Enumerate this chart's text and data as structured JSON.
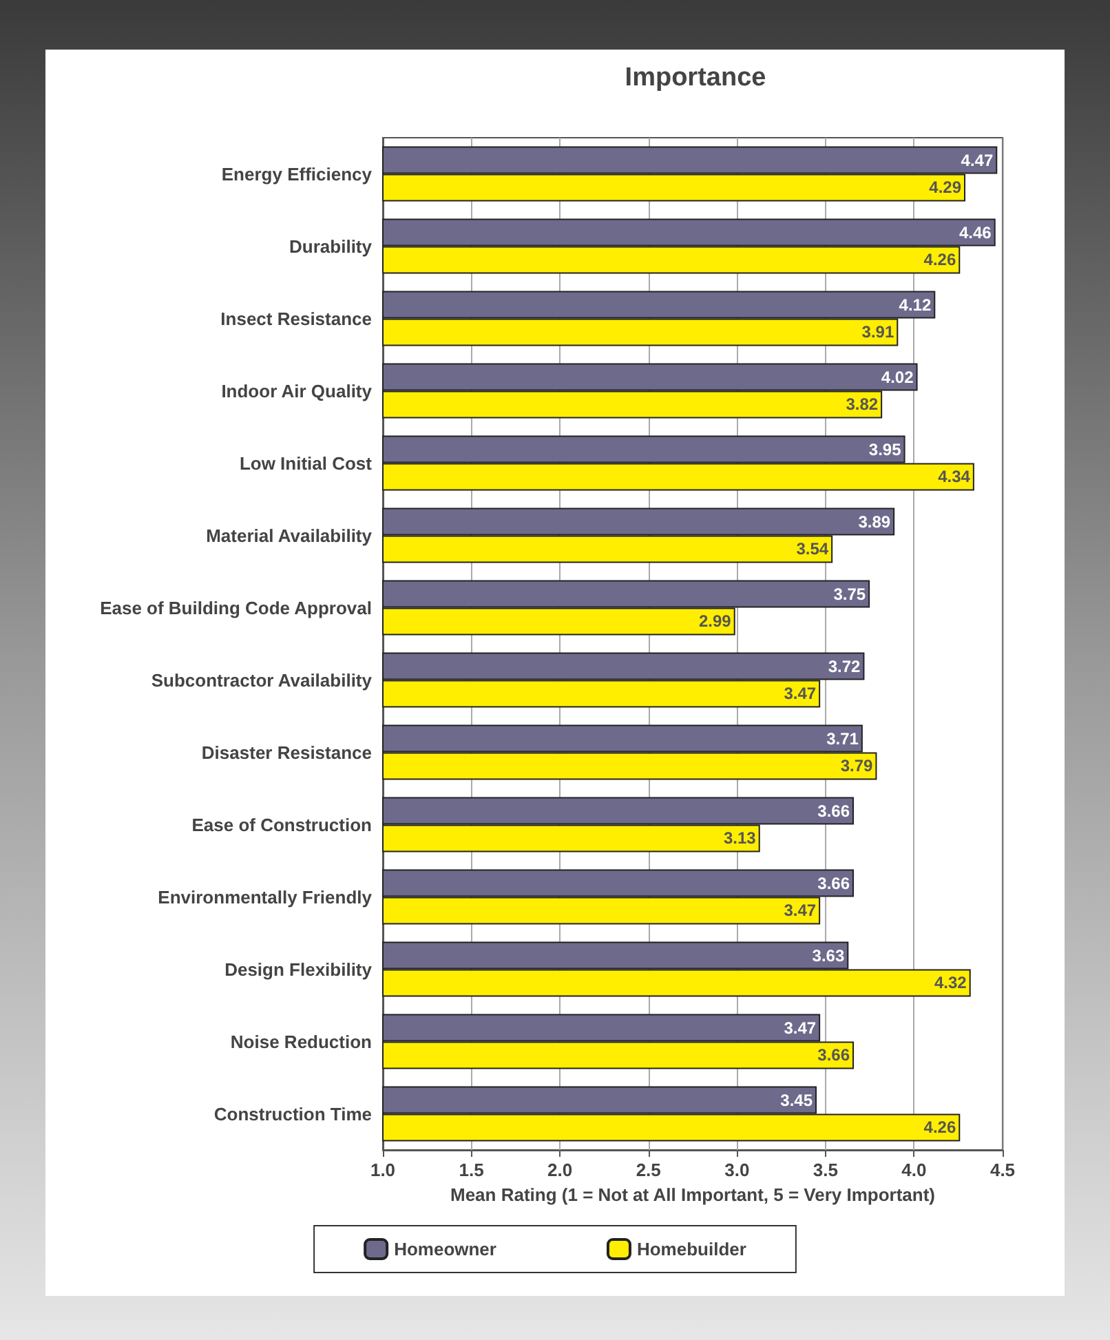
{
  "chart_data": {
    "type": "bar",
    "orientation": "horizontal",
    "title": "Importance",
    "xlabel": "Mean Rating (1 = Not at All Important, 5 = Very Important)",
    "categories": [
      "Energy Efficiency",
      "Durability",
      "Insect Resistance",
      "Indoor Air Quality",
      "Low Initial Cost",
      "Material Availability",
      "Ease of Building Code Approval",
      "Subcontractor Availability",
      "Disaster Resistance",
      "Ease of Construction",
      "Environmentally Friendly",
      "Design Flexibility",
      "Noise Reduction",
      "Construction Time"
    ],
    "series": [
      {
        "name": "Homeowner",
        "color": "#6e6a8c",
        "values": [
          4.47,
          4.46,
          4.12,
          4.02,
          3.95,
          3.89,
          3.75,
          3.72,
          3.71,
          3.66,
          3.66,
          3.63,
          3.47,
          3.45
        ]
      },
      {
        "name": "Homebuilder",
        "color": "#ffee00",
        "values": [
          4.29,
          4.26,
          3.91,
          3.82,
          4.34,
          3.54,
          2.99,
          3.47,
          3.79,
          3.13,
          3.47,
          4.32,
          3.66,
          4.26
        ]
      }
    ],
    "xlim": [
      1,
      4.5
    ],
    "xticks": [
      {
        "value": 1,
        "label": "1.0"
      },
      1.5,
      {
        "value": 2,
        "label": "2.0"
      },
      2.5,
      {
        "value": 3,
        "label": "3.0"
      },
      3.5,
      {
        "value": 4,
        "label": "4.0"
      },
      4.5
    ],
    "grid": "x",
    "legend": "bottom",
    "data_labels": true
  }
}
